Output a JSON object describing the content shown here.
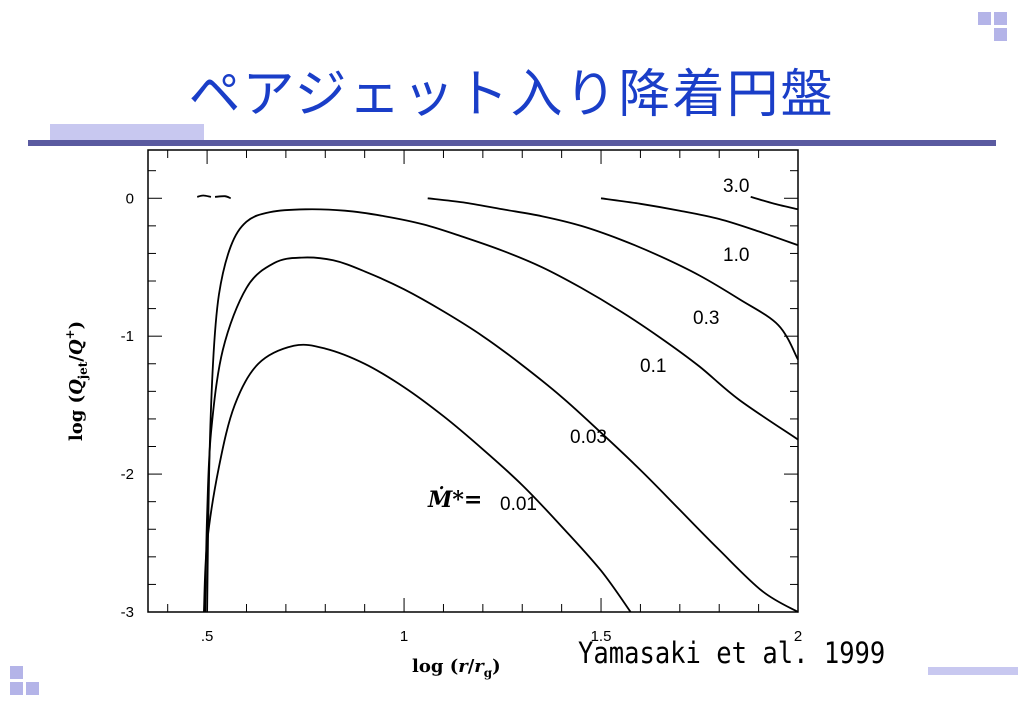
{
  "slide": {
    "title": "ペアジェット入り降着円盤",
    "citation": "Yamasaki et al. 1999",
    "colors": {
      "title": "#1a3ec8",
      "rule": "#5a5aa0",
      "accent": "#c8c8f0"
    }
  },
  "chart_data": {
    "type": "line",
    "x_axis": {
      "label": "log (r/r_g)",
      "range": [
        0.35,
        2.0
      ],
      "tick_labels": [
        ".5",
        "1",
        "1.5",
        "2"
      ]
    },
    "y_axis": {
      "label": "log (Q_jet/Q+)",
      "range": [
        -3.0,
        0.35
      ],
      "tick_labels": [
        "0",
        "-1",
        "-2",
        "-3"
      ]
    },
    "mdot_label": "Ṁ*=",
    "grid": false,
    "series": [
      {
        "name": "0.01",
        "points": [
          [
            0.492,
            -3.0
          ],
          [
            0.5,
            -2.5
          ],
          [
            0.53,
            -1.95
          ],
          [
            0.57,
            -1.5
          ],
          [
            0.63,
            -1.2
          ],
          [
            0.72,
            -1.07
          ],
          [
            0.8,
            -1.09
          ],
          [
            0.9,
            -1.2
          ],
          [
            1.0,
            -1.37
          ],
          [
            1.1,
            -1.58
          ],
          [
            1.2,
            -1.82
          ],
          [
            1.3,
            -2.08
          ],
          [
            1.4,
            -2.38
          ],
          [
            1.5,
            -2.7
          ],
          [
            1.575,
            -3.0
          ]
        ]
      },
      {
        "name": "0.03",
        "points": [
          [
            0.495,
            -3.0
          ],
          [
            0.5,
            -2.3
          ],
          [
            0.51,
            -1.7
          ],
          [
            0.54,
            -1.1
          ],
          [
            0.6,
            -0.65
          ],
          [
            0.67,
            -0.47
          ],
          [
            0.74,
            -0.43
          ],
          [
            0.82,
            -0.45
          ],
          [
            0.9,
            -0.53
          ],
          [
            1.0,
            -0.66
          ],
          [
            1.1,
            -0.82
          ],
          [
            1.2,
            -1.0
          ],
          [
            1.3,
            -1.21
          ],
          [
            1.4,
            -1.44
          ],
          [
            1.5,
            -1.7
          ],
          [
            1.6,
            -1.97
          ],
          [
            1.7,
            -2.26
          ],
          [
            1.8,
            -2.55
          ],
          [
            1.91,
            -2.85
          ],
          [
            2.0,
            -3.0
          ]
        ]
      },
      {
        "name": "0.1",
        "points": [
          [
            0.5,
            -3.0
          ],
          [
            0.505,
            -2.0
          ],
          [
            0.515,
            -1.2
          ],
          [
            0.53,
            -0.7
          ],
          [
            0.56,
            -0.35
          ],
          [
            0.6,
            -0.17
          ],
          [
            0.66,
            -0.1
          ],
          [
            0.75,
            -0.08
          ],
          [
            0.85,
            -0.09
          ],
          [
            0.95,
            -0.13
          ],
          [
            1.05,
            -0.19
          ],
          [
            1.15,
            -0.28
          ],
          [
            1.25,
            -0.38
          ],
          [
            1.35,
            -0.5
          ],
          [
            1.45,
            -0.65
          ],
          [
            1.55,
            -0.82
          ],
          [
            1.65,
            -1.01
          ],
          [
            1.75,
            -1.22
          ],
          [
            1.85,
            -1.46
          ],
          [
            2.0,
            -1.75
          ]
        ]
      },
      {
        "name": "0.3",
        "points": [
          [
            1.06,
            0.0
          ],
          [
            1.15,
            -0.03
          ],
          [
            1.25,
            -0.08
          ],
          [
            1.35,
            -0.13
          ],
          [
            1.45,
            -0.2
          ],
          [
            1.55,
            -0.3
          ],
          [
            1.65,
            -0.42
          ],
          [
            1.75,
            -0.56
          ],
          [
            1.85,
            -0.73
          ],
          [
            1.95,
            -0.92
          ],
          [
            2.0,
            -1.17
          ]
        ]
      },
      {
        "name": "1.0",
        "points": [
          [
            1.5,
            0.0
          ],
          [
            1.6,
            -0.04
          ],
          [
            1.7,
            -0.09
          ],
          [
            1.8,
            -0.15
          ],
          [
            1.9,
            -0.24
          ],
          [
            2.0,
            -0.34
          ]
        ]
      },
      {
        "name": "3.0",
        "points": [
          [
            1.88,
            0.01
          ],
          [
            1.94,
            -0.04
          ],
          [
            2.0,
            -0.08
          ]
        ]
      },
      {
        "name": "",
        "points": [
          [
            0.475,
            0.01
          ],
          [
            0.49,
            0.02
          ],
          [
            0.51,
            0.01
          ]
        ]
      },
      {
        "name": "",
        "points": [
          [
            0.52,
            0.01
          ],
          [
            0.545,
            0.015
          ],
          [
            0.56,
            0.0
          ]
        ]
      }
    ]
  }
}
